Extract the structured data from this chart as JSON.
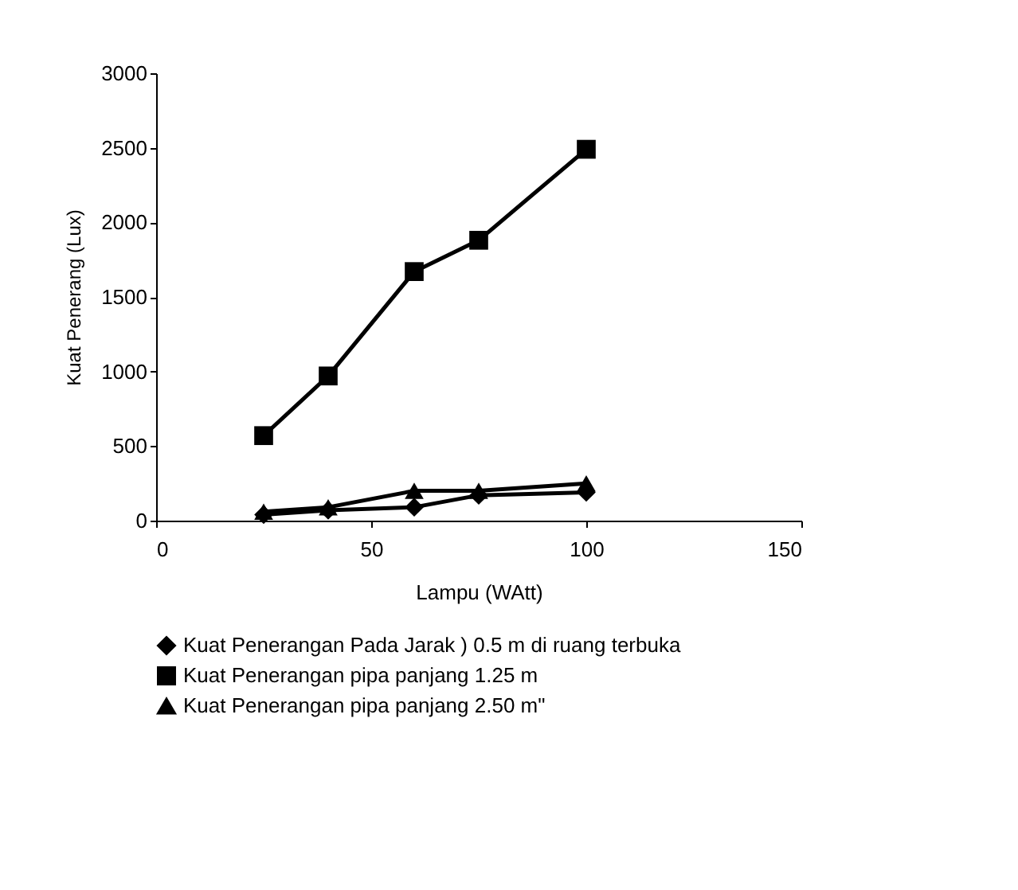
{
  "chart_data": {
    "type": "line",
    "xlabel": "Lampu (WAtt)",
    "ylabel": "Kuat Penerang (Lux)",
    "x": [
      25,
      40,
      60,
      75,
      100
    ],
    "series": [
      {
        "name": "Kuat Penerangan Pada Jarak ) 0.5 m di ruang terbuka",
        "color": "#000000",
        "marker": "diamond",
        "values": [
          40,
          70,
          90,
          170,
          190
        ]
      },
      {
        "name": "Kuat Penerangan pipa panjang 1.25 m",
        "color": "#000000",
        "marker": "square",
        "values": [
          570,
          970,
          1670,
          1880,
          2490
        ]
      },
      {
        "name": "Kuat Penerangan pipa panjang 2.50 m\"",
        "color": "#000000",
        "marker": "triangle",
        "values": [
          60,
          90,
          200,
          200,
          250
        ]
      }
    ],
    "xlim": [
      0,
      150
    ],
    "xticks": [
      0,
      50,
      100,
      150
    ],
    "ylim": [
      0,
      3000
    ],
    "yticks": [
      0,
      500,
      1000,
      1500,
      2000,
      2500,
      3000
    ],
    "legend": "bottom",
    "grid": false,
    "line_style": "solid"
  }
}
